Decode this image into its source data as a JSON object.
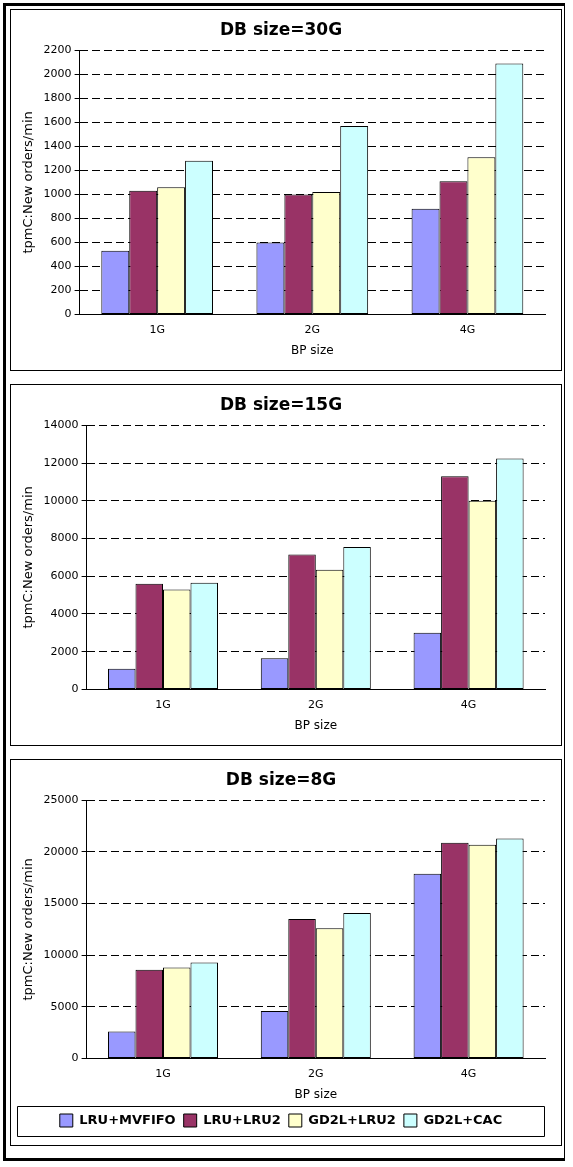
{
  "chart_data": [
    {
      "type": "bar",
      "title": "DB size=30G",
      "xlabel": "BP size",
      "ylabel": "tpmC:New orders/min",
      "categories": [
        "1G",
        "2G",
        "4G"
      ],
      "series": [
        {
          "color": "#9999ff",
          "values": [
            530,
            600,
            880
          ]
        },
        {
          "color": "#993366",
          "values": [
            1030,
            1000,
            1110
          ]
        },
        {
          "color": "#ffffcc",
          "values": [
            1060,
            1020,
            1310
          ]
        },
        {
          "color": "#ccffff",
          "values": [
            1280,
            1570,
            2090
          ]
        }
      ],
      "ylim": [
        0,
        2200
      ],
      "yticks": [
        0,
        200,
        400,
        600,
        800,
        1000,
        1200,
        1400,
        1600,
        1800,
        2000,
        2200
      ],
      "grid": "y"
    },
    {
      "type": "bar",
      "title": "DB size=15G",
      "xlabel": "BP size",
      "ylabel": "tpmC:New orders/min",
      "categories": [
        "1G",
        "2G",
        "4G"
      ],
      "series": [
        {
          "color": "#9999ff",
          "values": [
            1100,
            1650,
            3000
          ]
        },
        {
          "color": "#993366",
          "values": [
            5600,
            7150,
            11300
          ]
        },
        {
          "color": "#ffffcc",
          "values": [
            5300,
            6350,
            10000
          ]
        },
        {
          "color": "#ccffff",
          "values": [
            5650,
            7550,
            12250
          ]
        }
      ],
      "ylim": [
        0,
        14000
      ],
      "yticks": [
        0,
        2000,
        4000,
        6000,
        8000,
        10000,
        12000,
        14000
      ],
      "grid": "y"
    },
    {
      "type": "bar",
      "title": "DB size=8G",
      "xlabel": "BP size",
      "ylabel": "tpmC:New orders/min",
      "categories": [
        "1G",
        "2G",
        "4G"
      ],
      "series": [
        {
          "name": "LRU+MVFIFO",
          "color": "#9999ff",
          "values": [
            2600,
            4600,
            17900
          ]
        },
        {
          "name": "LRU+LRU2",
          "color": "#993366",
          "values": [
            8600,
            13500,
            20900
          ]
        },
        {
          "name": "GD2L+LRU2",
          "color": "#ffffcc",
          "values": [
            8800,
            12600,
            20700
          ]
        },
        {
          "name": "GD2L+CAC",
          "color": "#ccffff",
          "values": [
            9300,
            14100,
            21300
          ]
        }
      ],
      "ylim": [
        0,
        25000
      ],
      "yticks": [
        0,
        5000,
        10000,
        15000,
        20000,
        25000
      ],
      "grid": "y",
      "legend": "bottom"
    }
  ]
}
